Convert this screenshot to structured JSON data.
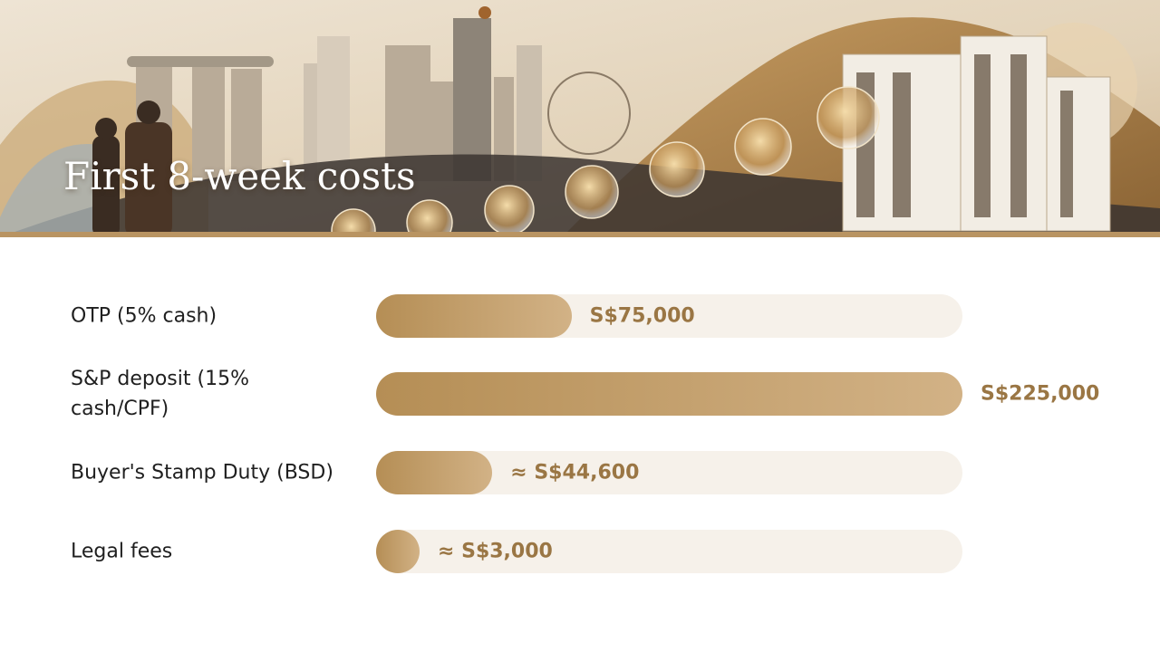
{
  "chart_data": {
    "type": "bar",
    "orientation": "horizontal",
    "title": "First 8-week costs",
    "categories": [
      "OTP (5% cash)",
      "S&P deposit (15% cash/CPF)",
      "Buyer's Stamp Duty (BSD)",
      "Legal fees"
    ],
    "values": [
      75000,
      225000,
      44600,
      3000
    ],
    "value_labels": [
      "S$75,000",
      "S$225,000",
      "≈ S$44,600",
      "≈ S$3,000"
    ],
    "xlim": [
      0,
      225000
    ],
    "color": "#b58e55"
  }
}
